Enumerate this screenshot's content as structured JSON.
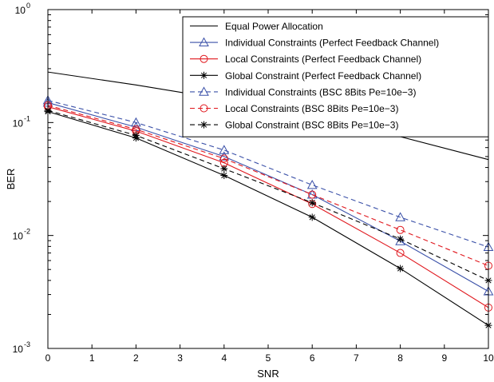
{
  "chart_data": {
    "type": "line",
    "title": "",
    "xlabel": "SNR",
    "ylabel": "BER",
    "xlim": [
      0,
      10
    ],
    "ylim": [
      0.001,
      1
    ],
    "yscale": "log",
    "grid": false,
    "legend_position": "top-right",
    "x_ticks": [
      "0",
      "1",
      "2",
      "3",
      "4",
      "5",
      "6",
      "7",
      "8",
      "9",
      "10"
    ],
    "y_ticks": [
      {
        "value": 0.001,
        "base": "10",
        "exp": "-3"
      },
      {
        "value": 0.01,
        "base": "10",
        "exp": "-2"
      },
      {
        "value": 0.1,
        "base": "10",
        "exp": "-1"
      },
      {
        "value": 1,
        "base": "10",
        "exp": "0"
      }
    ],
    "series": [
      {
        "name": "Equal Power Allocation",
        "color": "#000000",
        "dash": "solid",
        "marker": "none",
        "x": [
          0,
          2,
          4,
          6,
          8,
          10
        ],
        "y": [
          0.28,
          0.215,
          0.16,
          0.115,
          0.075,
          0.047
        ]
      },
      {
        "name": "Individual Constraints (Perfect Feedback Channel)",
        "color": "#3a50a8",
        "dash": "solid",
        "marker": "triangle",
        "x": [
          0,
          2,
          4,
          6,
          8,
          10
        ],
        "y": [
          0.15,
          0.091,
          0.05,
          0.023,
          0.0089,
          0.0032
        ]
      },
      {
        "name": "Local Constraints (Perfect Feedback Channel)",
        "color": "#e0161c",
        "dash": "solid",
        "marker": "circle",
        "x": [
          0,
          2,
          4,
          6,
          8,
          10
        ],
        "y": [
          0.138,
          0.084,
          0.044,
          0.019,
          0.007,
          0.0023
        ]
      },
      {
        "name": "Global Constraint (Perfect Feedback Channel)",
        "color": "#000000",
        "dash": "solid",
        "marker": "star",
        "x": [
          0,
          2,
          4,
          6,
          8,
          10
        ],
        "y": [
          0.125,
          0.073,
          0.034,
          0.0145,
          0.0051,
          0.0016
        ]
      },
      {
        "name": "Individual Constraints (BSC 8Bits Pe=10e−3)",
        "color": "#3a50a8",
        "dash": "dashed",
        "marker": "triangle",
        "x": [
          0,
          2,
          4,
          6,
          8,
          10
        ],
        "y": [
          0.157,
          0.1,
          0.057,
          0.028,
          0.0145,
          0.0079
        ]
      },
      {
        "name": "Local Constraints (BSC 8Bits Pe=10e−3)",
        "color": "#e0161c",
        "dash": "dashed",
        "marker": "circle",
        "x": [
          0,
          2,
          4,
          6,
          8,
          10
        ],
        "y": [
          0.142,
          0.087,
          0.048,
          0.023,
          0.0112,
          0.0054
        ]
      },
      {
        "name": "Global Constraint (BSC 8Bits Pe=10e−3)",
        "color": "#000000",
        "dash": "dashed",
        "marker": "star",
        "x": [
          0,
          2,
          4,
          6,
          8,
          10
        ],
        "y": [
          0.128,
          0.077,
          0.039,
          0.0195,
          0.0093,
          0.004
        ]
      }
    ]
  }
}
